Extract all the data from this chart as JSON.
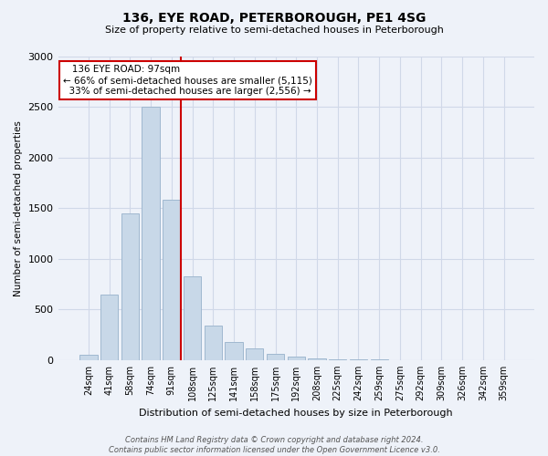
{
  "title1": "136, EYE ROAD, PETERBOROUGH, PE1 4SG",
  "title2": "Size of property relative to semi-detached houses in Peterborough",
  "xlabel": "Distribution of semi-detached houses by size in Peterborough",
  "ylabel": "Number of semi-detached properties",
  "footnote": "Contains HM Land Registry data © Crown copyright and database right 2024.\nContains public sector information licensed under the Open Government Licence v3.0.",
  "categories": [
    "24sqm",
    "41sqm",
    "58sqm",
    "74sqm",
    "91sqm",
    "108sqm",
    "125sqm",
    "141sqm",
    "158sqm",
    "175sqm",
    "192sqm",
    "208sqm",
    "225sqm",
    "242sqm",
    "259sqm",
    "275sqm",
    "292sqm",
    "309sqm",
    "326sqm",
    "342sqm",
    "359sqm"
  ],
  "bar_values": [
    55,
    650,
    1450,
    2500,
    1580,
    830,
    340,
    175,
    115,
    60,
    30,
    15,
    8,
    4,
    3,
    2,
    1,
    1,
    0,
    1,
    0
  ],
  "bar_color": "#c8d8e8",
  "bar_edge_color": "#a0b8d0",
  "grid_color": "#d0d8e8",
  "background_color": "#eef2f9",
  "property_label": "136 EYE ROAD: 97sqm",
  "pct_smaller": 66,
  "pct_larger": 33,
  "count_smaller": 5115,
  "count_larger": 2556,
  "vline_bin_index": 4,
  "annotation_box_color": "#ffffff",
  "annotation_box_edge": "#cc0000",
  "vline_color": "#cc0000",
  "ylim": [
    0,
    3000
  ],
  "yticks": [
    0,
    500,
    1000,
    1500,
    2000,
    2500,
    3000
  ]
}
